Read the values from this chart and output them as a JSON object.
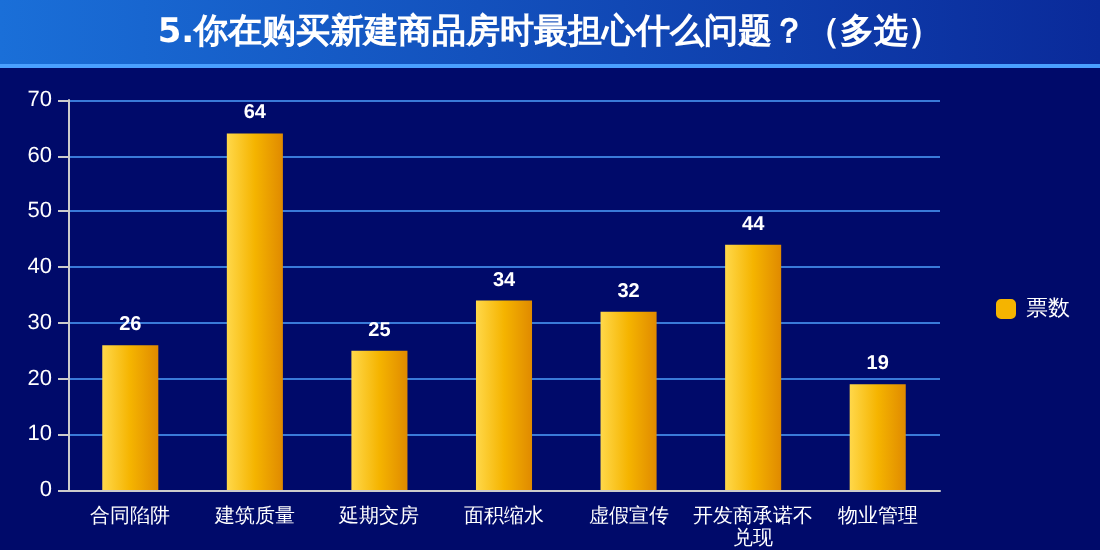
{
  "chart_data": {
    "type": "bar",
    "title": "5.你在购买新建商品房时最担心什么问题？（多选）",
    "categories": [
      "合同陷阱",
      "建筑质量",
      "延期交房",
      "面积缩水",
      "虚假宣传",
      "开发商承诺不兑现",
      "物业管理"
    ],
    "series": [
      {
        "name": "票数",
        "color": "#f5b400",
        "values": [
          26,
          64,
          25,
          34,
          32,
          44,
          19
        ]
      }
    ],
    "ylim": [
      0,
      70
    ],
    "yticks": [
      0,
      10,
      20,
      30,
      40,
      50,
      60,
      70
    ],
    "grid": "y",
    "legend": "right",
    "data_labels": true
  }
}
